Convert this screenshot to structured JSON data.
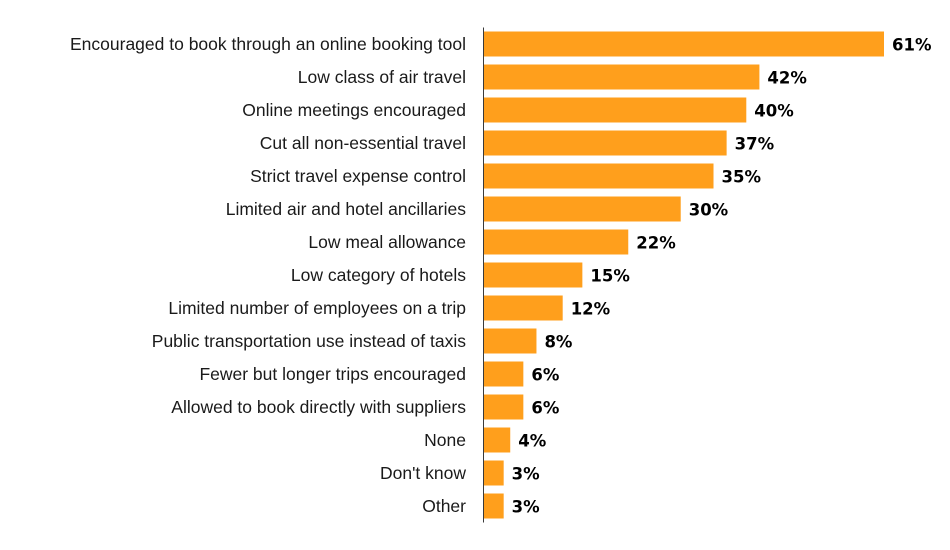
{
  "chart_data": {
    "type": "bar",
    "orientation": "horizontal",
    "title": "",
    "xlabel": "",
    "ylabel": "",
    "value_format": "percent",
    "xlim": [
      0,
      61
    ],
    "grid": false,
    "legend": "none",
    "bar_color": "#FF9F1C",
    "categories": [
      "Encouraged to book through an online booking tool",
      "Low class of air travel",
      "Online meetings encouraged",
      "Cut all non-essential travel",
      "Strict travel expense control",
      "Limited air and hotel ancillaries",
      "Low meal allowance",
      "Low category of hotels",
      "Limited number of employees on a trip",
      "Public transportation use instead of taxis",
      "Fewer but longer trips encouraged",
      "Allowed to book directly with suppliers",
      "None",
      "Don't know",
      "Other"
    ],
    "values": [
      61,
      42,
      40,
      37,
      35,
      30,
      22,
      15,
      12,
      8,
      6,
      6,
      4,
      3,
      3
    ],
    "value_labels": [
      "61%",
      "42%",
      "40%",
      "37%",
      "35%",
      "30%",
      "22%",
      "15%",
      "12%",
      "8%",
      "6%",
      "6%",
      "4%",
      "3%",
      "3%"
    ]
  }
}
